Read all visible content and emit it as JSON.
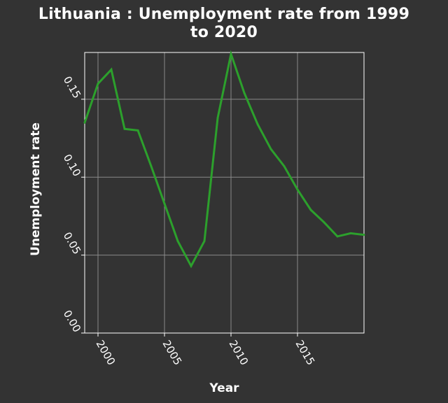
{
  "chart_data": {
    "type": "line",
    "title_line1": "Lithuania : Unemployment rate from 1999",
    "title_line2": "to 2020",
    "xlabel": "Year",
    "ylabel": "Unemployment rate",
    "xlim": [
      1999,
      2020
    ],
    "ylim": [
      0,
      0.18
    ],
    "x_ticks": [
      2000,
      2005,
      2010,
      2015
    ],
    "x_tick_labels": [
      "2000",
      "2005",
      "2010",
      "2015"
    ],
    "y_ticks": [
      0.0,
      0.05,
      0.1,
      0.15
    ],
    "y_tick_labels": [
      "0.00",
      "0.05",
      "0.10",
      "0.15"
    ],
    "grid": true,
    "line_color": "#2ca02c",
    "series": [
      {
        "x": [
          1999,
          2000,
          2001,
          2002,
          2003,
          2004,
          2005,
          2006,
          2007,
          2008,
          2009,
          2010,
          2011,
          2012,
          2013,
          2014,
          2015,
          2016,
          2017,
          2018,
          2019,
          2020
        ],
        "values": [
          0.135,
          0.16,
          0.169,
          0.131,
          0.13,
          0.107,
          0.083,
          0.059,
          0.043,
          0.059,
          0.138,
          0.179,
          0.154,
          0.134,
          0.118,
          0.107,
          0.092,
          0.079,
          0.071,
          0.062,
          0.064,
          0.063
        ]
      }
    ]
  }
}
